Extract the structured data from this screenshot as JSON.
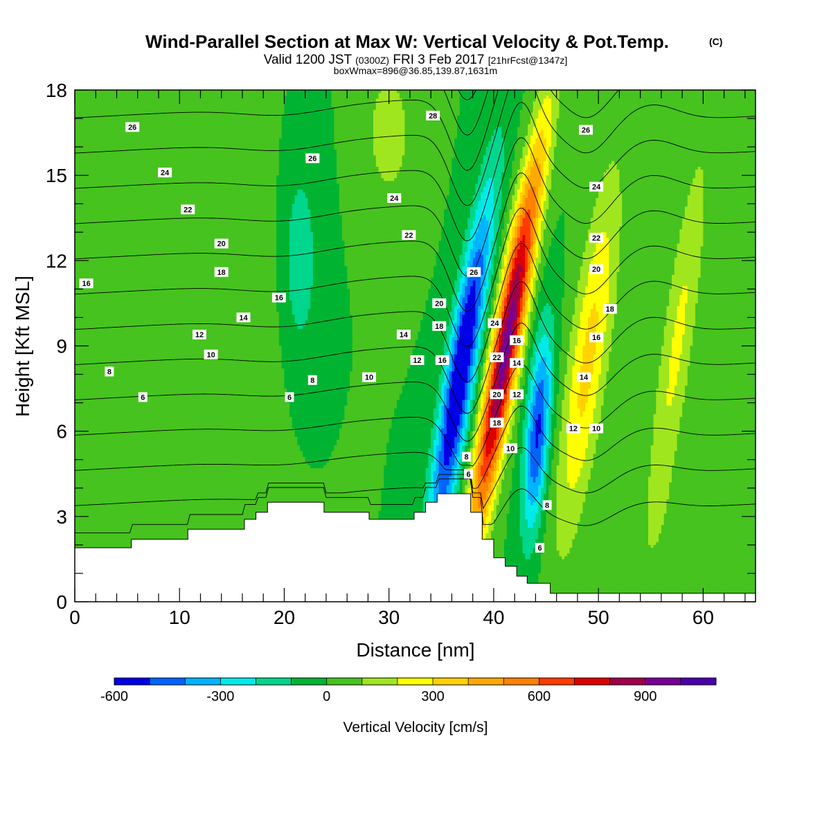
{
  "title": {
    "main": "Wind-Parallel Section at Max W: Vertical Velocity & Pot.Temp.",
    "copyright": "(C)",
    "valid_prefix": "Valid 1200 JST",
    "valid_zulu": "(0300Z)",
    "valid_date": "FRI 3 Feb 2017",
    "forecast": "[21hrFcst@1347z]",
    "box": "boxWmax=896@36.85,139.87,1631m"
  },
  "chart_data": {
    "type": "heatmap",
    "xlabel": "Distance [nm]",
    "ylabel": "Height [Kft MSL]",
    "xlim": [
      0,
      65
    ],
    "ylim": [
      0,
      18
    ],
    "x_ticks": [
      0,
      10,
      20,
      30,
      40,
      50,
      60
    ],
    "y_ticks": [
      0,
      3,
      6,
      9,
      12,
      15,
      18
    ],
    "colorbar": {
      "title": "Vertical Velocity [cm/s]",
      "levels": [
        -600,
        -500,
        -400,
        -300,
        -200,
        -100,
        0,
        100,
        200,
        300,
        400,
        500,
        600,
        700,
        800,
        900,
        1000,
        1100
      ],
      "tick_labels": [
        "-600",
        "-300",
        "0",
        "300",
        "600",
        "900"
      ],
      "tick_values": [
        -600,
        -300,
        0,
        300,
        600,
        900
      ],
      "colors": [
        "#0000e6",
        "#0064ff",
        "#00b4ff",
        "#00eaea",
        "#00d68c",
        "#00b432",
        "#46c31e",
        "#a0e61e",
        "#ffff00",
        "#ffd200",
        "#ffaa00",
        "#ff8200",
        "#ff3c00",
        "#dc0000",
        "#a0004b",
        "#780096",
        "#4b00aa"
      ]
    },
    "velocity_features": [
      {
        "x": 36.8,
        "y": 8.0,
        "w": -650,
        "sx": 1.0,
        "sy": 4.5,
        "tilt": 0.42
      },
      {
        "x": 41.2,
        "y": 9.0,
        "w": 950,
        "sx": 0.95,
        "sy": 5.0,
        "tilt": 0.45
      },
      {
        "x": 44.2,
        "y": 6.0,
        "w": -520,
        "sx": 0.8,
        "sy": 2.5,
        "tilt": 0.2
      },
      {
        "x": 49.0,
        "y": 8.5,
        "w": 330,
        "sx": 1.3,
        "sy": 4.5,
        "tilt": 0.35
      },
      {
        "x": 57.5,
        "y": 9.0,
        "w": 220,
        "sx": 1.1,
        "sy": 5.0,
        "tilt": 0.35
      },
      {
        "x": 30.0,
        "y": 16.5,
        "w": 160,
        "sx": 1.6,
        "sy": 1.8,
        "tilt": 0.0
      },
      {
        "x": 16.0,
        "y": 9.0,
        "w": 70,
        "sx": 2.5,
        "sy": 6.0,
        "tilt": 0.0
      },
      {
        "x": 21.5,
        "y": 12.0,
        "w": -170,
        "sx": 1.2,
        "sy": 2.5,
        "tilt": 0.0
      },
      {
        "x": 3.0,
        "y": 4.0,
        "w": 50,
        "sx": 3.0,
        "sy": 3.0,
        "tilt": 0.0
      },
      {
        "x": 61.0,
        "y": 2.0,
        "w": 60,
        "sx": 4.0,
        "sy": 1.5,
        "tilt": 0.0
      }
    ],
    "terrain": [
      [
        0,
        1.9
      ],
      [
        5.4,
        1.9
      ],
      [
        5.4,
        2.2
      ],
      [
        10.8,
        2.2
      ],
      [
        10.8,
        2.55
      ],
      [
        16.2,
        2.55
      ],
      [
        16.2,
        2.9
      ],
      [
        17.3,
        2.9
      ],
      [
        17.3,
        3.15
      ],
      [
        18.4,
        3.15
      ],
      [
        18.4,
        3.5
      ],
      [
        23.8,
        3.5
      ],
      [
        23.8,
        3.15
      ],
      [
        28.1,
        3.15
      ],
      [
        28.1,
        2.9
      ],
      [
        32.4,
        2.9
      ],
      [
        32.4,
        3.15
      ],
      [
        33.5,
        3.15
      ],
      [
        33.5,
        3.5
      ],
      [
        34.6,
        3.5
      ],
      [
        34.6,
        3.8
      ],
      [
        37.8,
        3.8
      ],
      [
        37.8,
        3.15
      ],
      [
        38.9,
        3.15
      ],
      [
        38.9,
        2.2
      ],
      [
        40.0,
        2.2
      ],
      [
        40.0,
        1.55
      ],
      [
        41.1,
        1.55
      ],
      [
        41.1,
        1.25
      ],
      [
        42.2,
        1.25
      ],
      [
        42.2,
        0.9
      ],
      [
        43.2,
        0.9
      ],
      [
        43.2,
        0.65
      ],
      [
        45.4,
        0.65
      ],
      [
        45.4,
        0.3
      ],
      [
        65,
        0.3
      ]
    ],
    "theta_levels": [
      4,
      6,
      8,
      10,
      12,
      14,
      16,
      18,
      20,
      22,
      24,
      26,
      28,
      30,
      32
    ],
    "theta_labels": [
      {
        "text": "26",
        "x": 5.5,
        "y": 16.7
      },
      {
        "text": "24",
        "x": 8.6,
        "y": 15.1
      },
      {
        "text": "22",
        "x": 10.8,
        "y": 13.8
      },
      {
        "text": "20",
        "x": 14.0,
        "y": 12.6
      },
      {
        "text": "18",
        "x": 14.0,
        "y": 11.6
      },
      {
        "text": "16",
        "x": 1.1,
        "y": 11.2
      },
      {
        "text": "16",
        "x": 19.5,
        "y": 10.7
      },
      {
        "text": "14",
        "x": 16.1,
        "y": 10.0
      },
      {
        "text": "12",
        "x": 11.9,
        "y": 9.4
      },
      {
        "text": "10",
        "x": 13.0,
        "y": 8.7
      },
      {
        "text": "8",
        "x": 3.3,
        "y": 8.1
      },
      {
        "text": "8",
        "x": 22.7,
        "y": 7.8
      },
      {
        "text": "10",
        "x": 28.1,
        "y": 7.9
      },
      {
        "text": "6",
        "x": 6.5,
        "y": 7.2
      },
      {
        "text": "6",
        "x": 20.5,
        "y": 7.2
      },
      {
        "text": "26",
        "x": 22.7,
        "y": 15.6
      },
      {
        "text": "28",
        "x": 34.2,
        "y": 17.1
      },
      {
        "text": "24",
        "x": 30.5,
        "y": 14.2
      },
      {
        "text": "22",
        "x": 31.9,
        "y": 12.9
      },
      {
        "text": "26",
        "x": 38.1,
        "y": 11.6
      },
      {
        "text": "20",
        "x": 34.8,
        "y": 10.5
      },
      {
        "text": "18",
        "x": 34.8,
        "y": 9.7
      },
      {
        "text": "14",
        "x": 31.4,
        "y": 9.4
      },
      {
        "text": "12",
        "x": 32.7,
        "y": 8.5
      },
      {
        "text": "16",
        "x": 35.1,
        "y": 8.5
      },
      {
        "text": "24",
        "x": 40.1,
        "y": 9.8
      },
      {
        "text": "22",
        "x": 40.3,
        "y": 8.6
      },
      {
        "text": "20",
        "x": 40.3,
        "y": 7.3
      },
      {
        "text": "18",
        "x": 40.3,
        "y": 6.3
      },
      {
        "text": "16",
        "x": 42.2,
        "y": 9.2
      },
      {
        "text": "14",
        "x": 42.2,
        "y": 8.4
      },
      {
        "text": "12",
        "x": 42.2,
        "y": 7.3
      },
      {
        "text": "10",
        "x": 41.6,
        "y": 5.4
      },
      {
        "text": "8",
        "x": 37.4,
        "y": 5.1
      },
      {
        "text": "6",
        "x": 37.6,
        "y": 4.5
      },
      {
        "text": "8",
        "x": 45.1,
        "y": 3.4
      },
      {
        "text": "6",
        "x": 44.4,
        "y": 1.9
      },
      {
        "text": "26",
        "x": 48.8,
        "y": 16.6
      },
      {
        "text": "24",
        "x": 49.8,
        "y": 14.6
      },
      {
        "text": "22",
        "x": 49.8,
        "y": 12.8
      },
      {
        "text": "20",
        "x": 49.8,
        "y": 11.7
      },
      {
        "text": "18",
        "x": 51.1,
        "y": 10.3
      },
      {
        "text": "16",
        "x": 49.8,
        "y": 9.3
      },
      {
        "text": "14",
        "x": 48.6,
        "y": 7.9
      },
      {
        "text": "12",
        "x": 47.6,
        "y": 6.1
      },
      {
        "text": "10",
        "x": 49.8,
        "y": 6.1
      }
    ]
  }
}
